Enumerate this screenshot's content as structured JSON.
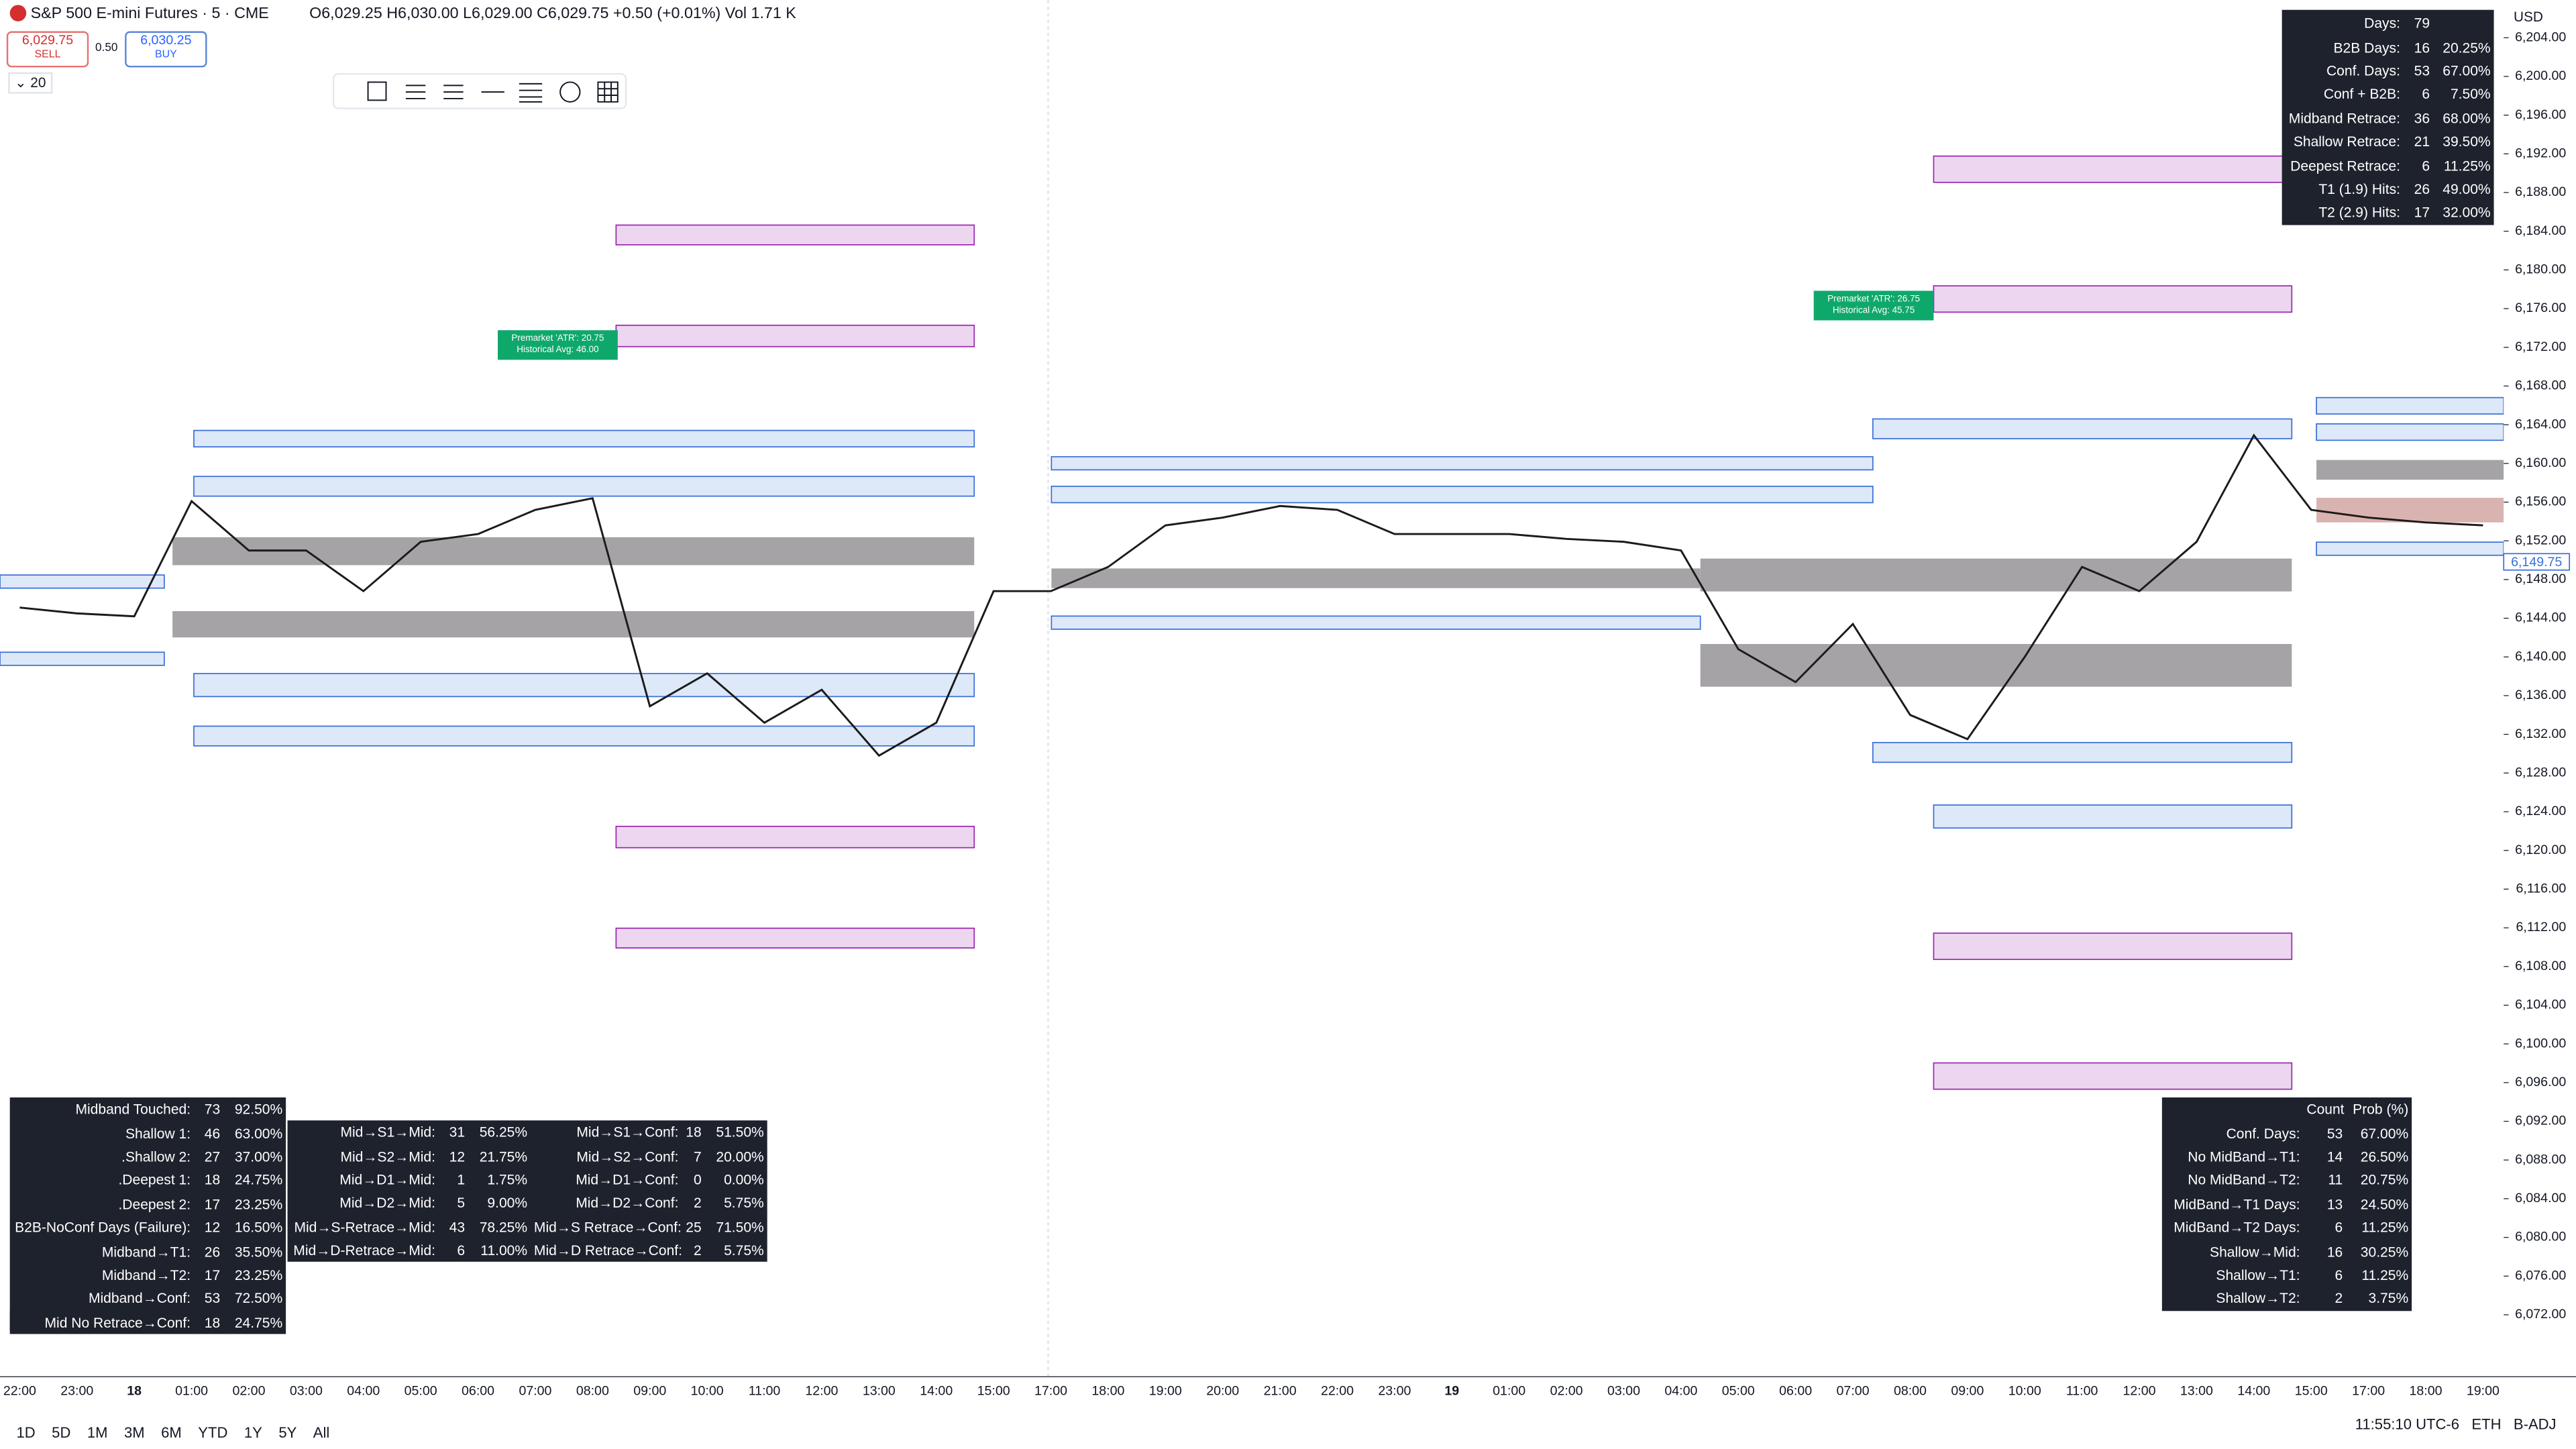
{
  "header": {
    "symbol": "S&P 500 E-mini Futures · 5 · CME",
    "ohlc": "O6,029.25 H6,030.00 L6,029.00 C6,029.75 +0.50 (+0.01%)",
    "volume": "Vol 1.71 K",
    "sell_price": "6,029.75",
    "sell": "SELL",
    "spread": "0.50",
    "buy_price": "6,030.25",
    "buy": "BUY",
    "interval": "20",
    "currency": "USD"
  },
  "chart_data": {
    "type": "line",
    "color": "#1b1b1b",
    "categories": [
      "22:00",
      "23:00",
      "18",
      "01:00",
      "02:00",
      "03:00",
      "04:00",
      "05:00",
      "06:00",
      "07:00",
      "08:00",
      "09:00",
      "10:00",
      "11:00",
      "12:00",
      "13:00",
      "14:00",
      "15:00",
      "17:00",
      "18:00",
      "19:00",
      "20:00",
      "21:00",
      "22:00",
      "23:00",
      "19",
      "01:00",
      "02:00",
      "03:00",
      "04:00",
      "05:00",
      "06:00",
      "07:00",
      "08:00",
      "09:00",
      "10:00",
      "11:00",
      "12:00",
      "13:00",
      "14:00",
      "15:00",
      "17:00",
      "18:00",
      "19:00"
    ],
    "values": [
      6145.1,
      6144.5,
      6144.2,
      6156.1,
      6151.0,
      6151.0,
      6146.8,
      6151.9,
      6152.7,
      6155.2,
      6156.4,
      6134.9,
      6138.3,
      6133.2,
      6136.6,
      6129.8,
      6133.2,
      6146.8,
      6146.8,
      6149.3,
      6153.6,
      6154.4,
      6155.6,
      6155.2,
      6152.7,
      6152.7,
      6152.7,
      6152.2,
      6151.9,
      6151.0,
      6140.8,
      6137.4,
      6143.4,
      6134.0,
      6131.5,
      6140.0,
      6149.3,
      6146.8,
      6151.9,
      6162.9,
      6155.2,
      6154.4,
      6153.9,
      6153.6
    ],
    "ylim": [
      6065.6,
      6207.9
    ],
    "yticks": [
      {
        "value": 6204,
        "label": "6,204.00"
      },
      {
        "value": 6200,
        "label": "6,200.00"
      },
      {
        "value": 6196,
        "label": "6,196.00"
      },
      {
        "value": 6192,
        "label": "6,192.00"
      },
      {
        "value": 6188,
        "label": "6,188.00"
      },
      {
        "value": 6184,
        "label": "6,184.00"
      },
      {
        "value": 6180,
        "label": "6,180.00"
      },
      {
        "value": 6176,
        "label": "6,176.00"
      },
      {
        "value": 6172,
        "label": "6,172.00"
      },
      {
        "value": 6168,
        "label": "6,168.00"
      },
      {
        "value": 6164,
        "label": "6,164.00"
      },
      {
        "value": 6160,
        "label": "6,160.00"
      },
      {
        "value": 6156,
        "label": "6,156.00"
      },
      {
        "value": 6152,
        "label": "6,152.00"
      },
      {
        "value": 6148,
        "label": "6,148.00"
      },
      {
        "value": 6144,
        "label": "6,144.00"
      },
      {
        "value": 6140,
        "label": "6,140.00"
      },
      {
        "value": 6136,
        "label": "6,136.00"
      },
      {
        "value": 6132,
        "label": "6,132.00"
      },
      {
        "value": 6128,
        "label": "6,128.00"
      },
      {
        "value": 6124,
        "label": "6,124.00"
      },
      {
        "value": 6120,
        "label": "6,120.00"
      },
      {
        "value": 6116,
        "label": "6,116.00"
      },
      {
        "value": 6112,
        "label": "6,112.00"
      },
      {
        "value": 6108,
        "label": "6,108.00"
      },
      {
        "value": 6104,
        "label": "6,104.00"
      },
      {
        "value": 6100,
        "label": "6,100.00"
      },
      {
        "value": 6096,
        "label": "6,096.00"
      },
      {
        "value": 6092,
        "label": "6,092.00"
      },
      {
        "value": 6088,
        "label": "6,088.00"
      },
      {
        "value": 6084,
        "label": "6,084.00"
      },
      {
        "value": 6080,
        "label": "6,080.00"
      },
      {
        "value": 6076,
        "label": "6,076.00"
      },
      {
        "value": 6072,
        "label": "6,072.00"
      }
    ],
    "last_price": {
      "value": 6149.75,
      "label": "6,149.75"
    },
    "annotations": [
      [
        "Premarket 'ATR': 20.75",
        "Historical Avg: 46.00"
      ],
      [
        "Premarket 'ATR': 26.75",
        "Historical Avg: 45.75"
      ]
    ]
  },
  "tables": {
    "top_right": {
      "rows": [
        [
          "Days:",
          "79"
        ],
        [
          "B2B Days:",
          "16",
          "20.25%"
        ],
        [
          "Conf. Days:",
          "53",
          "67.00%"
        ],
        [
          "Conf + B2B:",
          "6",
          "7.50%"
        ],
        [
          "Midband Retrace:",
          "36",
          "68.00%"
        ],
        [
          "Shallow Retrace:",
          "21",
          "39.50%"
        ],
        [
          "Deepest Retrace:",
          "6",
          "11.25%"
        ],
        [
          "T1 (1.9) Hits:",
          "26",
          "49.00%"
        ],
        [
          "T2 (2.9) Hits:",
          "17",
          "32.00%"
        ]
      ]
    },
    "bottom_left": {
      "rows": [
        [
          "Midband Touched:",
          "73",
          "92.50%"
        ],
        [
          "Shallow 1:",
          "46",
          "63.00%"
        ],
        [
          ".Shallow 2:",
          "27",
          "37.00%"
        ],
        [
          ".Deepest 1:",
          "18",
          "24.75%"
        ],
        [
          ".Deepest 2:",
          "17",
          "23.25%"
        ],
        [
          "B2B-NoConf Days (Failure):",
          "12",
          "16.50%"
        ],
        [
          "Midband→T1:",
          "26",
          "35.50%"
        ],
        [
          "Midband→T2:",
          "17",
          "23.25%"
        ],
        [
          "Midband→Conf:",
          "53",
          "72.50%"
        ],
        [
          "Mid No Retrace→Conf:",
          "18",
          "24.75%"
        ]
      ]
    },
    "bottom_mid": {
      "rows": [
        [
          "Mid→S1→Mid:",
          "31",
          "56.25%",
          "Mid→S1→Conf:",
          "18",
          "51.50%"
        ],
        [
          "Mid→S2→Mid:",
          "12",
          "21.75%",
          "Mid→S2→Conf:",
          "7",
          "20.00%"
        ],
        [
          "Mid→D1→Mid:",
          "1",
          "1.75%",
          "Mid→D1→Conf:",
          "0",
          "0.00%"
        ],
        [
          "Mid→D2→Mid:",
          "5",
          "9.00%",
          "Mid→D2→Conf:",
          "2",
          "5.75%"
        ],
        [
          "Mid→S-Retrace→Mid:",
          "43",
          "78.25%",
          "Mid→S Retrace→Conf:",
          "25",
          "71.50%"
        ],
        [
          "Mid→D-Retrace→Mid:",
          "6",
          "11.00%",
          "Mid→D Retrace→Conf:",
          "2",
          "5.75%"
        ]
      ]
    },
    "bottom_right": {
      "header": [
        "Count",
        "Prob (%)"
      ],
      "rows": [
        [
          "Conf. Days:",
          "53",
          "67.00%"
        ],
        [
          "No MidBand→T1:",
          "14",
          "26.50%"
        ],
        [
          "No MidBand→T2:",
          "11",
          "20.75%"
        ],
        [
          "MidBand→T1 Days:",
          "13",
          "24.50%"
        ],
        [
          "MidBand→T2 Days:",
          "6",
          "11.25%"
        ],
        [
          "Shallow→Mid:",
          "16",
          "30.25%"
        ],
        [
          "Shallow→T1:",
          "6",
          "11.25%"
        ],
        [
          "Shallow→T2:",
          "2",
          "3.75%"
        ]
      ]
    }
  },
  "toolbar": {
    "ranges": [
      "1D",
      "5D",
      "1M",
      "3M",
      "6M",
      "YTD",
      "1Y",
      "5Y",
      "All"
    ],
    "clock": "11:55:10 UTC-6",
    "session": "ETH",
    "adjust": "B-ADJ"
  }
}
